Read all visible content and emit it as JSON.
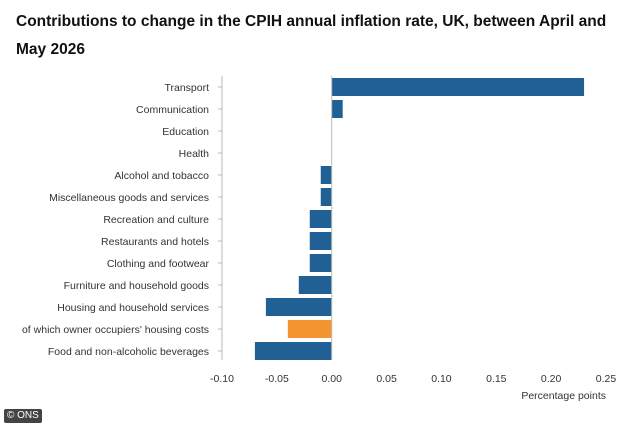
{
  "title": "Contributions to change in the CPIH annual inflation rate, UK, between April and May 2026",
  "credit": "© ONS",
  "chart_data": {
    "type": "bar",
    "orientation": "horizontal",
    "categories": [
      "Transport",
      "Communication",
      "Education",
      "Health",
      "Alcohol and tobacco",
      "Miscellaneous goods and services",
      "Recreation and culture",
      "Restaurants and hotels",
      "Clothing and footwear",
      "Furniture and household goods",
      "Housing and household services",
      "of which owner occupiers' housing costs",
      "Food and non-alcoholic beverages"
    ],
    "values": [
      0.23,
      0.01,
      0.0,
      0.0,
      -0.01,
      -0.01,
      -0.02,
      -0.02,
      -0.02,
      -0.03,
      -0.06,
      -0.04,
      -0.07
    ],
    "highlight_category": "of which owner occupiers' housing costs",
    "xlabel": "Percentage points",
    "ylabel": "",
    "xlim": [
      -0.1,
      0.25
    ],
    "xticks": [
      "-0.10",
      "-0.05",
      "0.00",
      "0.05",
      "0.10",
      "0.15",
      "0.20",
      "0.25"
    ],
    "tick_values": [
      -0.1,
      -0.05,
      0.0,
      0.05,
      0.1,
      0.15,
      0.2,
      0.25
    ],
    "grid": false,
    "colors": {
      "bar": "#206095",
      "highlight": "#f39431",
      "axis": "#bbbbbb",
      "text": "#333333"
    }
  }
}
